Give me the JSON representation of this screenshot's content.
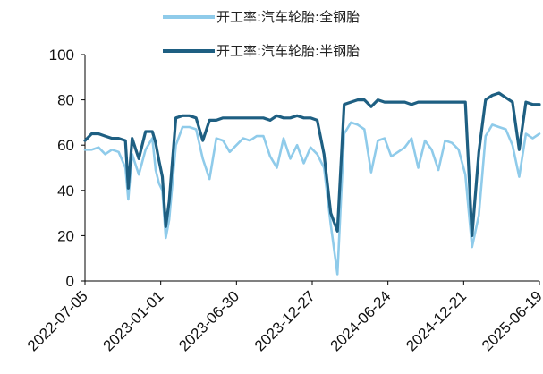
{
  "chart_data": {
    "type": "line",
    "title": "",
    "xlabel": "",
    "ylabel": "",
    "ylim": [
      0,
      100
    ],
    "yticks": [
      0,
      20,
      40,
      60,
      80,
      100
    ],
    "x_tick_labels": [
      "2022-07-05",
      "2023-01-01",
      "2023-06-30",
      "2023-12-27",
      "2024-06-24",
      "2024-12-21",
      "2025-06-19"
    ],
    "x": [
      "2022-07-05",
      "2022-07-21",
      "2022-08-06",
      "2022-08-22",
      "2022-09-07",
      "2022-09-23",
      "2022-10-09",
      "2022-10-16",
      "2022-10-25",
      "2022-11-10",
      "2022-11-26",
      "2022-12-12",
      "2022-12-20",
      "2022-12-28",
      "2023-01-05",
      "2023-01-13",
      "2023-01-21",
      "2023-02-06",
      "2023-02-22",
      "2023-03-10",
      "2023-03-26",
      "2023-04-11",
      "2023-04-27",
      "2023-05-13",
      "2023-05-29",
      "2023-06-14",
      "2023-06-30",
      "2023-07-16",
      "2023-08-01",
      "2023-08-17",
      "2023-09-02",
      "2023-09-18",
      "2023-10-04",
      "2023-10-20",
      "2023-11-05",
      "2023-11-21",
      "2023-12-07",
      "2023-12-23",
      "2024-01-08",
      "2024-01-24",
      "2024-02-09",
      "2024-02-25",
      "2024-03-12",
      "2024-03-28",
      "2024-04-13",
      "2024-04-29",
      "2024-05-15",
      "2024-05-31",
      "2024-06-16",
      "2024-07-02",
      "2024-07-18",
      "2024-08-03",
      "2024-08-19",
      "2024-09-04",
      "2024-09-20",
      "2024-10-06",
      "2024-10-22",
      "2024-11-07",
      "2024-11-23",
      "2024-12-09",
      "2024-12-25",
      "2025-01-10",
      "2025-01-26",
      "2025-02-11",
      "2025-02-27",
      "2025-03-15",
      "2025-03-31",
      "2025-04-16",
      "2025-05-02",
      "2025-05-18",
      "2025-06-03",
      "2025-06-19"
    ],
    "series": [
      {
        "name": "开工率:汽车轮胎:全钢胎",
        "color": "#8fcbea",
        "values": [
          58,
          58,
          59,
          56,
          58,
          57,
          50,
          36,
          56,
          47,
          58,
          63,
          49,
          43,
          40,
          19,
          27,
          60,
          68,
          68,
          67,
          54,
          45,
          63,
          62,
          57,
          60,
          63,
          62,
          64,
          64,
          55,
          50,
          63,
          54,
          60,
          52,
          59,
          56,
          50,
          25,
          3,
          65,
          70,
          69,
          67,
          48,
          62,
          63,
          55,
          57,
          59,
          63,
          50,
          62,
          58,
          49,
          62,
          61,
          58,
          47,
          15,
          29,
          64,
          69,
          68,
          67,
          60,
          46,
          65,
          63,
          65
        ]
      },
      {
        "name": "开工率:汽车轮胎:半钢胎",
        "color": "#1e5f82",
        "values": [
          62,
          65,
          65,
          64,
          63,
          63,
          62,
          41,
          63,
          54,
          66,
          66,
          61,
          53,
          46,
          24,
          35,
          72,
          73,
          73,
          72,
          62,
          71,
          71,
          72,
          72,
          72,
          72,
          72,
          72,
          72,
          71,
          73,
          72,
          72,
          73,
          72,
          72,
          71,
          56,
          30,
          22,
          78,
          79,
          80,
          80,
          77,
          80,
          79,
          79,
          79,
          79,
          78,
          79,
          79,
          79,
          79,
          79,
          79,
          79,
          79,
          20,
          57,
          80,
          82,
          83,
          81,
          79,
          58,
          79,
          78,
          78
        ]
      }
    ],
    "grid": false,
    "legend_position": "top"
  }
}
